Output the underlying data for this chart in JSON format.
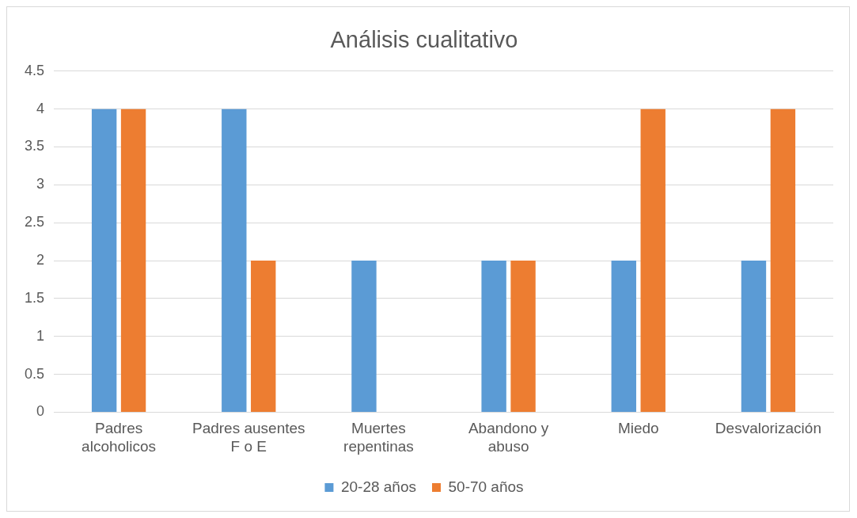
{
  "chart_data": {
    "type": "bar",
    "title": "Análisis cualitativo",
    "categories": [
      "Padres alcoholicos",
      "Padres ausentes F o E",
      "Muertes repentinas",
      "Abandono y abuso",
      "Miedo",
      "Desvalorización"
    ],
    "series": [
      {
        "name": "20-28 años",
        "color": "#5b9bd5",
        "values": [
          4,
          4,
          2,
          2,
          2,
          2
        ]
      },
      {
        "name": "50-70 años",
        "color": "#ed7d31",
        "values": [
          4,
          2,
          0,
          2,
          4,
          4
        ]
      }
    ],
    "ylim": [
      0,
      4.5
    ],
    "yticks": [
      0,
      0.5,
      1,
      1.5,
      2,
      2.5,
      3,
      3.5,
      4,
      4.5
    ],
    "grid": "y",
    "legend": "bottom"
  }
}
